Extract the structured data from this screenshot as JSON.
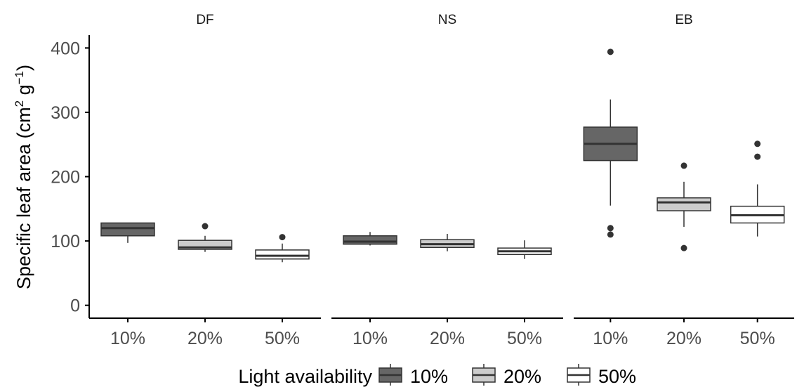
{
  "chart_data": {
    "type": "boxplot",
    "ylabel": "Specific leaf area (cm² g⁻¹)",
    "ylabel_parts": {
      "main": "Specific leaf area (cm",
      "sup1": "2",
      "mid": " g",
      "sup2": "−1",
      "end": ")"
    },
    "ylim": [
      -20,
      420
    ],
    "yticks": [
      0,
      100,
      200,
      300,
      400
    ],
    "categories": [
      "10%",
      "20%",
      "50%"
    ],
    "legend": {
      "title": "Light availability",
      "position": "bottom",
      "entries": [
        "10%",
        "20%",
        "50%"
      ]
    },
    "colors": {
      "10%": "#666666",
      "20%": "#cccccc",
      "50%": "#ffffff",
      "outline": "#333333",
      "axis": "#000000",
      "tick_text": "#4d4d4d"
    },
    "panels": [
      {
        "name": "DF",
        "boxes": [
          {
            "group": "10%",
            "min": 97,
            "q1": 108,
            "median": 120,
            "q3": 128,
            "max": 128,
            "outliers": []
          },
          {
            "group": "20%",
            "min": 83,
            "q1": 87,
            "median": 90,
            "q3": 101,
            "max": 108,
            "outliers": [
              123
            ]
          },
          {
            "group": "50%",
            "min": 67,
            "q1": 72,
            "median": 77,
            "q3": 86,
            "max": 96,
            "outliers": [
              106
            ]
          }
        ]
      },
      {
        "name": "NS",
        "boxes": [
          {
            "group": "10%",
            "min": 93,
            "q1": 95,
            "median": 99,
            "q3": 108,
            "max": 114,
            "outliers": []
          },
          {
            "group": "20%",
            "min": 84,
            "q1": 90,
            "median": 95,
            "q3": 102,
            "max": 111,
            "outliers": []
          },
          {
            "group": "50%",
            "min": 72,
            "q1": 79,
            "median": 84,
            "q3": 89,
            "max": 101,
            "outliers": []
          }
        ]
      },
      {
        "name": "EB",
        "boxes": [
          {
            "group": "10%",
            "min": 155,
            "q1": 225,
            "median": 251,
            "q3": 277,
            "max": 320,
            "outliers": [
              110,
              120,
              394
            ]
          },
          {
            "group": "20%",
            "min": 122,
            "q1": 147,
            "median": 160,
            "q3": 167,
            "max": 192,
            "outliers": [
              89,
              217
            ]
          },
          {
            "group": "50%",
            "min": 107,
            "q1": 128,
            "median": 140,
            "q3": 154,
            "max": 188,
            "outliers": [
              231,
              251
            ]
          }
        ]
      }
    ]
  }
}
